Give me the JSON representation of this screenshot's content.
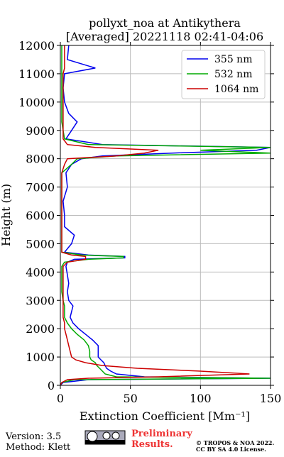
{
  "chart_data": {
    "type": "line",
    "title": [
      "pollyxt_noa at Antikythera",
      "[Averaged] 20221118 02:41-04:06"
    ],
    "x_label": "Extinction Coefficient [Mm⁻¹]",
    "y_label": "Height (m)",
    "xlim": [
      0,
      150
    ],
    "xticks": [
      0,
      50,
      100,
      150
    ],
    "ylim": [
      0,
      12000
    ],
    "yticks": [
      0,
      1000,
      2000,
      3000,
      4000,
      5000,
      6000,
      7000,
      8000,
      9000,
      10000,
      11000,
      12000
    ],
    "grid": true,
    "legend": "upper right",
    "heights": [
      0,
      100,
      200,
      250,
      300,
      400,
      500,
      600,
      700,
      800,
      900,
      1000,
      1200,
      1400,
      1600,
      1800,
      2000,
      2200,
      2400,
      2600,
      2800,
      3000,
      3300,
      3600,
      3900,
      4200,
      4350,
      4450,
      4500,
      4550,
      4600,
      4700,
      5000,
      5300,
      5600,
      6000,
      6500,
      7000,
      7500,
      7800,
      8000,
      8100,
      8200,
      8300,
      8400,
      8500,
      8700,
      9000,
      9300,
      9600,
      10000,
      10500,
      11000,
      11200,
      11500,
      12000
    ],
    "series": [
      {
        "name": "355 nm",
        "color": "#0000ee",
        "values": [
          0,
          2,
          20,
          150,
          60,
          40,
          36,
          33,
          32,
          31,
          29,
          27,
          27,
          27,
          23,
          18,
          13,
          9,
          7,
          8,
          9,
          6,
          5,
          6,
          5,
          4,
          5,
          10,
          46,
          46,
          20,
          3,
          8,
          10,
          3,
          3,
          2,
          5,
          4,
          8,
          15,
          30,
          80,
          140,
          150,
          30,
          4,
          8,
          12,
          6,
          3,
          2,
          3,
          25,
          5,
          6
        ]
      },
      {
        "name": "532 nm",
        "color": "#00aa00",
        "values": [
          0,
          1,
          10,
          150,
          40,
          32,
          30,
          28,
          26,
          25,
          22,
          21,
          21,
          20,
          17,
          12,
          8,
          5,
          3,
          3,
          3,
          2,
          1,
          1,
          1,
          1,
          3,
          20,
          45,
          45,
          15,
          1,
          1,
          1,
          1,
          1,
          1,
          1,
          1,
          8,
          12,
          40,
          150,
          100,
          150,
          20,
          3,
          2,
          1,
          1,
          1,
          1,
          1,
          1,
          1,
          1
        ]
      },
      {
        "name": "1064 nm",
        "color": "#cc0000",
        "values": [
          0,
          1,
          5,
          20,
          70,
          135,
          100,
          55,
          30,
          18,
          11,
          8,
          7,
          6,
          5,
          4,
          3,
          3,
          2,
          2,
          2,
          2,
          2,
          2,
          2,
          2,
          5,
          18,
          18,
          18,
          8,
          1,
          1,
          1,
          1,
          1,
          1,
          1,
          1,
          3,
          5,
          40,
          60,
          70,
          25,
          5,
          2,
          2,
          2,
          2,
          2,
          2,
          2,
          3,
          3,
          3
        ]
      }
    ],
    "footer": {
      "version": "Version: 3.5",
      "method": "Method: Klett",
      "status": [
        "Preliminary",
        "Results."
      ],
      "copyright": [
        "© TROPOS & NOA 2022.",
        "CC BY SA 4.0 License."
      ]
    }
  }
}
